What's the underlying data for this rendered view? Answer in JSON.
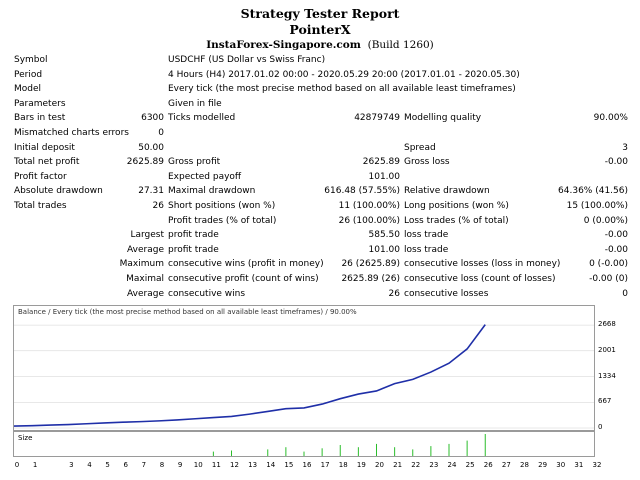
{
  "header": {
    "title": "Strategy Tester Report",
    "expert": "PointerX",
    "broker": "InstaForex-Singapore.com",
    "build": "(Build 1260)"
  },
  "rows": {
    "symbol": {
      "label": "Symbol",
      "value": "USDCHF (US Dollar vs Swiss Franc)"
    },
    "period": {
      "label": "Period",
      "value": "4 Hours (H4) 2017.01.02 00:00 - 2020.05.29 20:00 (2017.01.01 - 2020.05.30)"
    },
    "model": {
      "label": "Model",
      "value": "Every tick (the most precise method based on all available least timeframes)"
    },
    "parameters": {
      "label": "Parameters",
      "value": "Given in file"
    },
    "bars": {
      "label": "Bars in test",
      "value": "6300",
      "l2": "Ticks modelled",
      "v2": "42879749",
      "l3": "Modelling quality",
      "v3": "90.00%"
    },
    "mismatched": {
      "label": "Mismatched charts errors",
      "value": "0"
    },
    "deposit": {
      "label": "Initial deposit",
      "value": "50.00",
      "l3": "Spread",
      "v3": "3"
    },
    "netprofit": {
      "label": "Total net profit",
      "value": "2625.89",
      "l2": "Gross profit",
      "v2": "2625.89",
      "l3": "Gross loss",
      "v3": "-0.00"
    },
    "pf": {
      "label": "Profit factor",
      "value": "",
      "l2": "Expected payoff",
      "v2": "101.00"
    },
    "absdd": {
      "label": "Absolute drawdown",
      "value": "27.31",
      "l2": "Maximal drawdown",
      "v2": "616.48 (57.55%)",
      "l3": "Relative drawdown",
      "v3": "64.36% (41.56)"
    },
    "trades": {
      "label": "Total trades",
      "value": "26",
      "l2": "Short positions (won %)",
      "v2": "11 (100.00%)",
      "l3": "Long positions (won %)",
      "v3": "15 (100.00%)"
    },
    "ptrades": {
      "l2": "Profit trades (% of total)",
      "v2": "26 (100.00%)",
      "l3": "Loss trades (% of total)",
      "v3": "0 (0.00%)"
    },
    "largest": {
      "l1": "Largest",
      "l2": "profit trade",
      "v2": "585.50",
      "l3": "loss trade",
      "v3": "-0.00"
    },
    "average": {
      "l1": "Average",
      "l2": "profit trade",
      "v2": "101.00",
      "l3": "loss trade",
      "v3": "-0.00"
    },
    "maxcons": {
      "l1": "Maximum",
      "l2": "consecutive wins (profit in money)",
      "v2": "26 (2625.89)",
      "l3": "consecutive losses (loss in money)",
      "v3": "0 (-0.00)"
    },
    "maximal": {
      "l1": "Maximal",
      "l2": "consecutive profit (count of wins)",
      "v2": "2625.89 (26)",
      "l3": "consecutive loss (count of losses)",
      "v3": "-0.00 (0)"
    },
    "avgcons": {
      "l1": "Average",
      "l2": "consecutive wins",
      "v2": "26",
      "l3": "consecutive losses",
      "v3": "0"
    }
  },
  "chart_data": {
    "type": "line",
    "title": "Balance / Every tick (the most precise method based on all available least timeframes) / 90.00%",
    "x": [
      0,
      1,
      2,
      3,
      4,
      5,
      6,
      7,
      8,
      9,
      10,
      11,
      12,
      13,
      14,
      15,
      16,
      17,
      18,
      19,
      20,
      21,
      22,
      23,
      24,
      25,
      26
    ],
    "y": [
      50,
      60,
      75,
      90,
      110,
      130,
      150,
      165,
      185,
      210,
      240,
      270,
      300,
      360,
      430,
      500,
      520,
      620,
      760,
      880,
      960,
      1150,
      1260,
      1450,
      1680,
      2050,
      2680
    ],
    "ylim": [
      0,
      2800
    ],
    "yticks": [
      "2668",
      "2001",
      "1334",
      "667",
      "0"
    ],
    "ytick_values": [
      2668,
      2001,
      1334,
      667,
      0
    ],
    "xlim": [
      0,
      32
    ],
    "xticks": [
      "0",
      "1",
      "3",
      "4",
      "5",
      "6",
      "7",
      "8",
      "9",
      "10",
      "11",
      "12",
      "13",
      "14",
      "15",
      "16",
      "17",
      "18",
      "19",
      "20",
      "21",
      "22",
      "23",
      "24",
      "25",
      "26",
      "27",
      "28",
      "29",
      "30",
      "31",
      "32"
    ],
    "xtick_values": [
      0,
      1,
      3,
      4,
      5,
      6,
      7,
      8,
      9,
      10,
      11,
      12,
      13,
      14,
      15,
      16,
      17,
      18,
      19,
      20,
      21,
      22,
      23,
      24,
      25,
      26,
      27,
      28,
      29,
      30,
      31,
      32
    ],
    "volume_label": "Size",
    "volume": [
      {
        "x": 11,
        "v": 0.2
      },
      {
        "x": 12,
        "v": 0.25
      },
      {
        "x": 14,
        "v": 0.3
      },
      {
        "x": 15,
        "v": 0.4
      },
      {
        "x": 16,
        "v": 0.2
      },
      {
        "x": 17,
        "v": 0.35
      },
      {
        "x": 18,
        "v": 0.5
      },
      {
        "x": 19,
        "v": 0.4
      },
      {
        "x": 20,
        "v": 0.55
      },
      {
        "x": 21,
        "v": 0.4
      },
      {
        "x": 22,
        "v": 0.3
      },
      {
        "x": 23,
        "v": 0.45
      },
      {
        "x": 24,
        "v": 0.55
      },
      {
        "x": 25,
        "v": 0.7
      },
      {
        "x": 26,
        "v": 1.0
      }
    ],
    "colors": {
      "line": "#1f2fa8",
      "volume": "#2bbd2b",
      "grid": "#d0d0d0"
    }
  }
}
